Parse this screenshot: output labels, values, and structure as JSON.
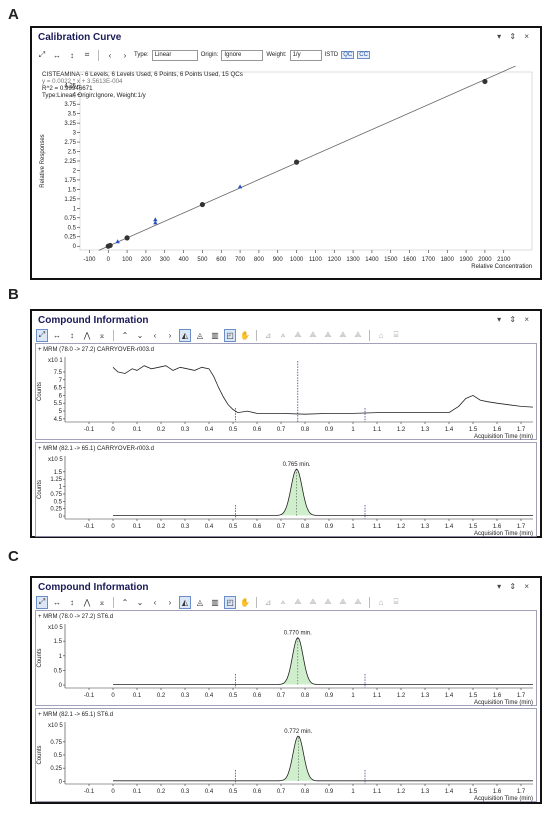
{
  "panels": [
    {
      "letter": "A",
      "title": "Calibration Curve"
    },
    {
      "letter": "B",
      "title": "Compound Information"
    },
    {
      "letter": "C",
      "title": "Compound Information"
    }
  ],
  "window_controls": "▾ ⇕ ×",
  "toolbar_a": {
    "type_label": "Type:",
    "type_value": "Linear",
    "origin_label": "Origin:",
    "origin_value": "Ignore",
    "weight_label": "Weight:",
    "weight_value": "1/y",
    "istd": "ISTD",
    "qc": "QC",
    "cc": "CC"
  },
  "chart_data": [
    {
      "type": "scatter",
      "id": "calibration",
      "ylabel": "Relative Responses",
      "xlabel": "Relative Concentration",
      "yscale_label": "",
      "xlim": [
        -150,
        2250
      ],
      "ylim": [
        -0.1,
        4.6
      ],
      "xticks": [
        -100,
        0,
        100,
        200,
        300,
        400,
        500,
        600,
        700,
        800,
        900,
        1000,
        1100,
        1200,
        1300,
        1400,
        1500,
        1600,
        1700,
        1800,
        1900,
        2000,
        2100
      ],
      "yticks": [
        0,
        0.25,
        0.5,
        0.75,
        1,
        1.25,
        1.5,
        1.75,
        2,
        2.25,
        2.5,
        2.75,
        3,
        3.25,
        3.5,
        3.75,
        4,
        4.25
      ],
      "info_lines": [
        "CISTEAMINA - 6 Levels, 6 Levels Used, 6 Points, 6 Points Used, 15 QCs",
        "y = 0.0022 * x + 3.5613E-004",
        "R^2 = 0.99946671",
        "Type:Linear, Origin:Ignore, Weight:1/y"
      ],
      "fit_line": {
        "slope": 0.0022,
        "intercept": 0.00036
      },
      "calibrators": [
        [
          0,
          0.0
        ],
        [
          10,
          0.02
        ],
        [
          100,
          0.22
        ],
        [
          500,
          1.1
        ],
        [
          1000,
          2.22
        ],
        [
          2000,
          4.35
        ]
      ],
      "qcs": [
        [
          50,
          0.12
        ],
        [
          250,
          0.7
        ],
        [
          250,
          0.62
        ],
        [
          700,
          1.57
        ]
      ]
    },
    {
      "type": "line",
      "id": "B1",
      "trace_label": "+ MRM (78.0 -> 27.2) CARRYOVER-r003.d",
      "ylabel": "Counts",
      "yscale_label": "x10 1",
      "xlabel": "Acquisition Time (min)",
      "xlim": [
        -0.2,
        1.75
      ],
      "ylim": [
        4.3,
        8.2
      ],
      "xticks": [
        -0.1,
        0,
        0.1,
        0.2,
        0.3,
        0.4,
        0.5,
        0.6,
        0.7,
        0.8,
        0.9,
        1,
        1.1,
        1.2,
        1.3,
        1.4,
        1.5,
        1.6,
        1.7
      ],
      "yticks": [
        4.5,
        5,
        5.5,
        6,
        6.5,
        7,
        7.5
      ],
      "markers": [
        0.51,
        0.77,
        1.05
      ],
      "peak_label": "",
      "x": [
        0.0,
        0.02,
        0.05,
        0.08,
        0.1,
        0.13,
        0.16,
        0.19,
        0.22,
        0.25,
        0.28,
        0.31,
        0.34,
        0.37,
        0.4,
        0.42,
        0.44,
        0.46,
        0.48,
        0.5,
        0.52,
        0.56,
        0.6,
        0.7,
        0.8,
        0.9,
        1.0,
        1.1,
        1.2,
        1.3,
        1.4,
        1.44,
        1.47,
        1.5,
        1.53,
        1.56,
        1.6,
        1.65,
        1.7,
        1.75
      ],
      "y": [
        7.8,
        7.5,
        7.4,
        7.7,
        7.6,
        7.9,
        7.7,
        7.8,
        7.9,
        7.6,
        7.8,
        7.7,
        7.6,
        7.8,
        7.7,
        7.2,
        6.5,
        5.9,
        5.4,
        5.1,
        4.9,
        5.0,
        4.85,
        4.85,
        4.8,
        4.85,
        4.85,
        4.9,
        4.9,
        4.9,
        4.9,
        5.3,
        5.8,
        6.0,
        5.7,
        5.6,
        5.5,
        5.4,
        5.3,
        5.25
      ]
    },
    {
      "type": "line",
      "id": "B2",
      "trace_label": "+ MRM (82.1 -> 65.1) CARRYOVER-r003.d",
      "ylabel": "Counts",
      "yscale_label": "x10 5",
      "xlabel": "Acquisition Time (min)",
      "xlim": [
        -0.2,
        1.75
      ],
      "ylim": [
        -0.1,
        1.9
      ],
      "xticks": [
        -0.1,
        0,
        0.1,
        0.2,
        0.3,
        0.4,
        0.5,
        0.6,
        0.7,
        0.8,
        0.9,
        1,
        1.1,
        1.2,
        1.3,
        1.4,
        1.5,
        1.6,
        1.7
      ],
      "yticks": [
        0,
        0.25,
        0.5,
        0.75,
        1,
        1.25,
        1.5
      ],
      "markers": [
        0.51,
        1.05
      ],
      "peak_label": "0.765 min.",
      "peak": {
        "rt": 0.765,
        "height": 1.57,
        "sigma": 0.023,
        "baseline": 0.02
      }
    },
    {
      "type": "line",
      "id": "C1",
      "trace_label": "+ MRM (78.0 -> 27.2) ST6.d",
      "ylabel": "Counts",
      "yscale_label": "x10 5",
      "xlabel": "Acquisition Time (min)",
      "xlim": [
        -0.2,
        1.75
      ],
      "ylim": [
        -0.1,
        1.95
      ],
      "xticks": [
        -0.1,
        0,
        0.1,
        0.2,
        0.3,
        0.4,
        0.5,
        0.6,
        0.7,
        0.8,
        0.9,
        1,
        1.1,
        1.2,
        1.3,
        1.4,
        1.5,
        1.6,
        1.7
      ],
      "yticks": [
        0,
        0.5,
        1,
        1.5
      ],
      "markers": [
        0.51,
        1.05
      ],
      "peak_label": "0.770 min.",
      "peak": {
        "rt": 0.77,
        "height": 1.6,
        "sigma": 0.022,
        "baseline": 0.02
      }
    },
    {
      "type": "line",
      "id": "C2",
      "trace_label": "+ MRM (82.1 -> 65.1) ST6.d",
      "ylabel": "Counts",
      "yscale_label": "x10 5",
      "xlabel": "Acquisition Time (min)",
      "xlim": [
        -0.2,
        1.75
      ],
      "ylim": [
        -0.05,
        1.05
      ],
      "xticks": [
        -0.1,
        0,
        0.1,
        0.2,
        0.3,
        0.4,
        0.5,
        0.6,
        0.7,
        0.8,
        0.9,
        1,
        1.1,
        1.2,
        1.3,
        1.4,
        1.5,
        1.6,
        1.7
      ],
      "yticks": [
        0,
        0.25,
        0.5,
        0.75
      ],
      "markers": [
        0.51,
        1.05
      ],
      "peak_label": "0.772 min.",
      "peak": {
        "rt": 0.772,
        "height": 0.85,
        "sigma": 0.022,
        "baseline": 0.01
      }
    }
  ]
}
